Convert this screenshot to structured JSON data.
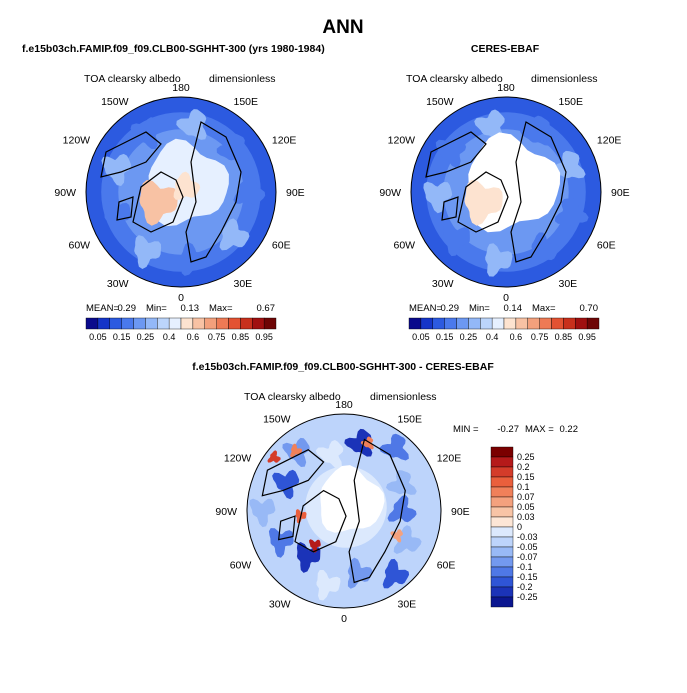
{
  "page": {
    "title": "ANN"
  },
  "panels": [
    {
      "id": "model",
      "header": "f.e15b03ch.FAMIP.f09_f09.CLB00-SGHHT-300 (yrs 1980-1984)",
      "variable_label": "TOA clearsky albedo",
      "units_label": "dimensionless",
      "lon_labels": [
        "180",
        "150E",
        "120E",
        "90E",
        "60E",
        "30E",
        "0",
        "30W",
        "60W",
        "90W",
        "120W",
        "150W"
      ],
      "stats": {
        "mean_label": "MEAN=",
        "mean": "0.29",
        "min_label": "Min=",
        "min": "0.13",
        "max_label": "Max=",
        "max": "0.67"
      }
    },
    {
      "id": "obs",
      "header": "CERES-EBAF",
      "variable_label": "TOA clearsky albedo",
      "units_label": "dimensionless",
      "lon_labels": [
        "180",
        "150E",
        "120E",
        "90E",
        "60E",
        "30E",
        "0",
        "30W",
        "60W",
        "90W",
        "120W",
        "150W"
      ],
      "stats": {
        "mean_label": "MEAN=",
        "mean": "0.29",
        "min_label": "Min=",
        "min": "0.14",
        "max_label": "Max=",
        "max": "0.70"
      }
    },
    {
      "id": "diff",
      "header": "f.e15b03ch.FAMIP.f09_f09.CLB00-SGHHT-300 - CERES-EBAF",
      "variable_label": "TOA clearsky albedo",
      "units_label": "dimensionless",
      "lon_labels": [
        "180",
        "150E",
        "120E",
        "90E",
        "60E",
        "30E",
        "0",
        "30W",
        "60W",
        "90W",
        "120W",
        "150W"
      ],
      "stats": {
        "min_label": "MIN =",
        "min": "-0.27",
        "max_label": "MAX =",
        "max": "0.22"
      }
    }
  ],
  "colorbars": {
    "absolute": {
      "orientation": "horizontal",
      "levels": [
        "0.05",
        "0.15",
        "0.25",
        "0.4",
        "0.6",
        "0.75",
        "0.85",
        "0.95"
      ],
      "colors": [
        "#0a0a8c",
        "#1535c8",
        "#2c5ae0",
        "#4a79ec",
        "#6c98f2",
        "#93b8f8",
        "#bcd5fb",
        "#e6f0ff",
        "#fde3d0",
        "#f8c2a4",
        "#f3a07c",
        "#ee7a55",
        "#e35232",
        "#c8301c",
        "#a01010",
        "#6e0505"
      ]
    },
    "difference": {
      "orientation": "vertical",
      "levels": [
        "0.25",
        "0.2",
        "0.15",
        "0.1",
        "0.07",
        "0.05",
        "0.03",
        "0",
        "-0.03",
        "-0.05",
        "-0.07",
        "-0.1",
        "-0.15",
        "-0.2",
        "-0.25"
      ],
      "colors": [
        "#7a0000",
        "#b51a1a",
        "#d43c2a",
        "#ea5f3c",
        "#f0805a",
        "#f4a17e",
        "#f8c4a6",
        "#fde6d6",
        "#dce9fd",
        "#bdd4fb",
        "#98b9f6",
        "#7399ef",
        "#4f78e6",
        "#2f55d6",
        "#1b33b8",
        "#0b1690"
      ]
    }
  },
  "chart_data": [
    {
      "type": "heatmap",
      "projection": "north polar stereographic",
      "title": "f.e15b03ch.FAMIP.f09_f09.CLB00-SGHHT-300 (yrs 1980-1984)",
      "variable": "TOA clearsky albedo",
      "units": "dimensionless",
      "mean": 0.29,
      "min": 0.13,
      "max": 0.67,
      "contour_levels": [
        0.05,
        0.1,
        0.15,
        0.2,
        0.25,
        0.3,
        0.4,
        0.5,
        0.6,
        0.7,
        0.75,
        0.8,
        0.85,
        0.9,
        0.95
      ]
    },
    {
      "type": "heatmap",
      "projection": "north polar stereographic",
      "title": "CERES-EBAF",
      "variable": "TOA clearsky albedo",
      "units": "dimensionless",
      "mean": 0.29,
      "min": 0.14,
      "max": 0.7,
      "contour_levels": [
        0.05,
        0.1,
        0.15,
        0.2,
        0.25,
        0.3,
        0.4,
        0.5,
        0.6,
        0.7,
        0.75,
        0.8,
        0.85,
        0.9,
        0.95
      ]
    },
    {
      "type": "heatmap",
      "projection": "north polar stereographic",
      "title": "f.e15b03ch.FAMIP.f09_f09.CLB00-SGHHT-300 - CERES-EBAF",
      "variable": "TOA clearsky albedo",
      "units": "dimensionless",
      "min": -0.27,
      "max": 0.22,
      "contour_levels": [
        -0.25,
        -0.2,
        -0.15,
        -0.1,
        -0.07,
        -0.05,
        -0.03,
        0,
        0.03,
        0.05,
        0.07,
        0.1,
        0.15,
        0.2,
        0.25
      ]
    }
  ]
}
